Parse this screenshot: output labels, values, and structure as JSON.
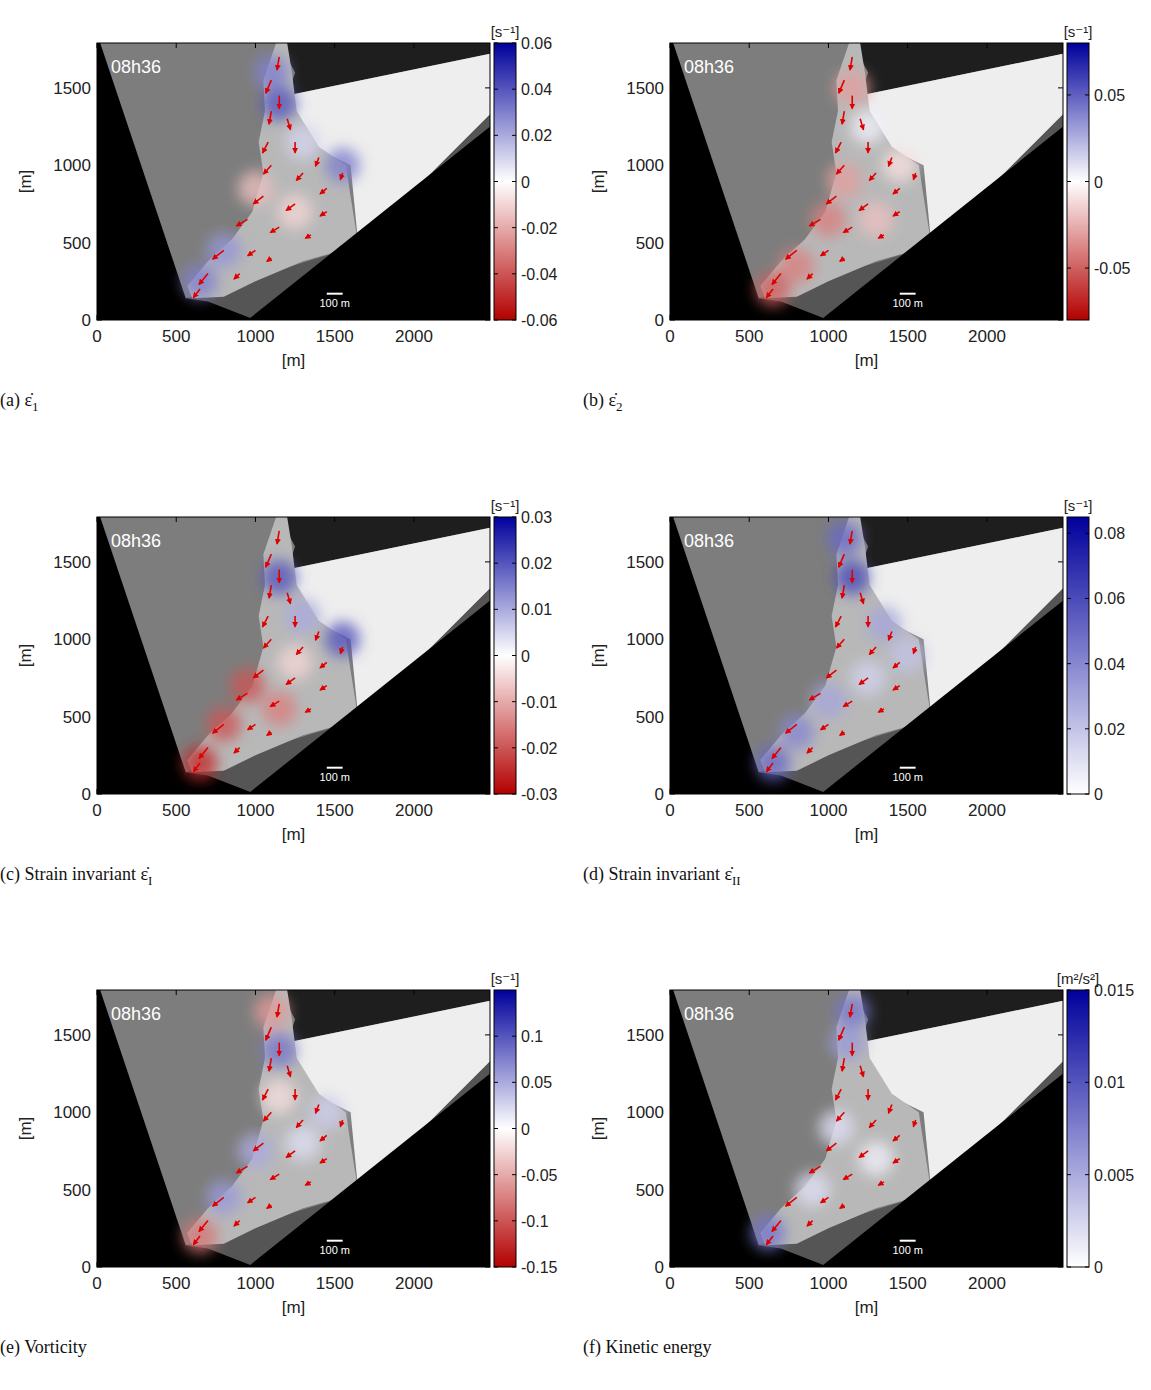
{
  "chart_data": [
    {
      "type": "vector_field_map",
      "caption": "(a) ε̇",
      "caption_sub": "1",
      "annotation": "08h36",
      "x_label": "[m]",
      "y_label": "[m]",
      "xlim": [
        0,
        2480
      ],
      "ylim": [
        0,
        1790
      ],
      "xticks": [
        0,
        500,
        1000,
        1500,
        2000
      ],
      "yticks": [
        0,
        500,
        1000,
        1500
      ],
      "scale_bar": {
        "length": 100,
        "label": "100 m"
      },
      "colorbar": {
        "range": [
          -0.06,
          0.06
        ],
        "ticks": [
          -0.06,
          -0.04,
          -0.02,
          0,
          0.02,
          0.04,
          0.06
        ],
        "unit": "[s⁻¹]",
        "colors": [
          "#b30000",
          "#ffffff",
          "#00009c"
        ]
      },
      "field": {
        "x": [
          1150,
          1100,
          1550,
          800,
          1250,
          1000,
          650,
          1300
        ],
        "y": [
          1400,
          1600,
          1000,
          450,
          700,
          850,
          250,
          1150
        ],
        "values": [
          0.04,
          0.03,
          0.03,
          0.025,
          -0.01,
          -0.015,
          0.03,
          0.01
        ]
      }
    },
    {
      "type": "vector_field_map",
      "caption": "(b) ε̇",
      "caption_sub": "2",
      "annotation": "08h36",
      "x_label": "[m]",
      "y_label": "[m]",
      "xlim": [
        0,
        2480
      ],
      "ylim": [
        0,
        1790
      ],
      "xticks": [
        0,
        500,
        1000,
        1500,
        2000
      ],
      "yticks": [
        0,
        500,
        1000,
        1500
      ],
      "scale_bar": {
        "length": 100,
        "label": "100 m"
      },
      "colorbar": {
        "range": [
          -0.08,
          0.08
        ],
        "ticks": [
          -0.05,
          0,
          0.05
        ],
        "unit": "[s⁻¹]",
        "colors": [
          "#b30000",
          "#ffffff",
          "#00009c"
        ]
      },
      "field": {
        "x": [
          1000,
          1100,
          800,
          1150,
          1300,
          650,
          1450,
          1250
        ],
        "y": [
          650,
          900,
          350,
          1500,
          650,
          200,
          1000,
          1250
        ],
        "values": [
          -0.04,
          -0.03,
          -0.04,
          -0.03,
          -0.02,
          -0.05,
          -0.01,
          0.005
        ]
      }
    },
    {
      "type": "vector_field_map",
      "caption": "(c) Strain invariant ε̇",
      "caption_sub": "I",
      "annotation": "08h36",
      "x_label": "[m]",
      "y_label": "[m]",
      "xlim": [
        0,
        2480
      ],
      "ylim": [
        0,
        1790
      ],
      "xticks": [
        0,
        500,
        1000,
        1500,
        2000
      ],
      "yticks": [
        0,
        500,
        1000,
        1500
      ],
      "scale_bar": {
        "length": 100,
        "label": "100 m"
      },
      "colorbar": {
        "range": [
          -0.03,
          0.03
        ],
        "ticks": [
          -0.03,
          -0.02,
          -0.01,
          0,
          0.01,
          0.02,
          0.03
        ],
        "unit": "[s⁻¹]",
        "colors": [
          "#b30000",
          "#ffffff",
          "#00009c"
        ]
      },
      "field": {
        "x": [
          1150,
          1550,
          950,
          800,
          1150,
          650,
          1300,
          1250
        ],
        "y": [
          1400,
          1000,
          700,
          450,
          550,
          200,
          1150,
          850
        ],
        "values": [
          0.02,
          0.02,
          -0.02,
          -0.02,
          -0.015,
          -0.025,
          0.01,
          -0.005
        ]
      }
    },
    {
      "type": "vector_field_map",
      "caption": "(d) Strain invariant ε̇",
      "caption_sub": "II",
      "annotation": "08h36",
      "x_label": "[m]",
      "y_label": "[m]",
      "xlim": [
        0,
        2480
      ],
      "ylim": [
        0,
        1790
      ],
      "xticks": [
        0,
        500,
        1000,
        1500,
        2000
      ],
      "yticks": [
        0,
        500,
        1000,
        1500
      ],
      "scale_bar": {
        "length": 100,
        "label": "100 m"
      },
      "colorbar": {
        "range": [
          0,
          0.085
        ],
        "ticks": [
          0,
          0.02,
          0.04,
          0.06,
          0.08
        ],
        "unit": "[s⁻¹]",
        "colors": [
          "#ffffff",
          "#00009c"
        ]
      },
      "field": {
        "x": [
          1150,
          1100,
          1000,
          800,
          650,
          1350,
          1250,
          1500
        ],
        "y": [
          1400,
          1650,
          600,
          400,
          200,
          1100,
          750,
          900
        ],
        "values": [
          0.06,
          0.05,
          0.03,
          0.04,
          0.05,
          0.03,
          0.015,
          0.02
        ]
      }
    },
    {
      "type": "vector_field_map",
      "caption": "(e) Vorticity",
      "annotation": "08h36",
      "x_label": "[m]",
      "y_label": "[m]",
      "xlim": [
        0,
        2480
      ],
      "ylim": [
        0,
        1790
      ],
      "xticks": [
        0,
        500,
        1000,
        1500,
        2000
      ],
      "yticks": [
        0,
        500,
        1000,
        1500
      ],
      "scale_bar": {
        "length": 100,
        "label": "100 m"
      },
      "colorbar": {
        "range": [
          -0.15,
          0.15
        ],
        "ticks": [
          -0.15,
          -0.1,
          -0.05,
          0,
          0.05,
          0.1
        ],
        "unit": "[s⁻¹]",
        "colors": [
          "#b30000",
          "#ffffff",
          "#00009c"
        ]
      },
      "field": {
        "x": [
          1150,
          1100,
          1000,
          800,
          650,
          1300,
          1450,
          1150
        ],
        "y": [
          1400,
          1650,
          750,
          450,
          200,
          800,
          1000,
          1100
        ],
        "values": [
          0.08,
          -0.06,
          0.05,
          0.06,
          -0.08,
          0.02,
          0.03,
          -0.02
        ]
      }
    },
    {
      "type": "vector_field_map",
      "caption": "(f) Kinetic energy",
      "annotation": "08h36",
      "x_label": "[m]",
      "y_label": "[m]",
      "xlim": [
        0,
        2480
      ],
      "ylim": [
        0,
        1790
      ],
      "xticks": [
        0,
        500,
        1000,
        1500,
        2000
      ],
      "yticks": [
        0,
        500,
        1000,
        1500
      ],
      "scale_bar": {
        "length": 100,
        "label": "100 m"
      },
      "colorbar": {
        "range": [
          0,
          0.015
        ],
        "ticks": [
          0,
          0.005,
          0.01,
          0.015
        ],
        "unit": "[m²/s²]",
        "colors": [
          "#ffffff",
          "#00009c"
        ]
      },
      "field": {
        "x": [
          1150,
          1120,
          620,
          1050,
          900,
          1300
        ],
        "y": [
          1650,
          1450,
          220,
          900,
          500,
          700
        ],
        "values": [
          0.008,
          0.006,
          0.008,
          0.002,
          0.002,
          0.001
        ]
      }
    }
  ],
  "vector_field": {
    "x": [
      1150,
      1100,
      1150,
      1100,
      1200,
      1080,
      1250,
      1400,
      1550,
      1100,
      1300,
      1450,
      1050,
      1250,
      1450,
      950,
      1150,
      1350,
      800,
      1000,
      700,
      900,
      650,
      1100
    ],
    "y": [
      1700,
      1550,
      1450,
      1350,
      1300,
      1150,
      1150,
      1050,
      950,
      1000,
      950,
      850,
      800,
      750,
      700,
      650,
      600,
      550,
      450,
      450,
      300,
      300,
      200,
      400
    ],
    "u": [
      -0.02,
      -0.05,
      0.0,
      -0.02,
      0.03,
      -0.05,
      0.0,
      -0.03,
      -0.02,
      -0.07,
      -0.06,
      -0.06,
      -0.09,
      -0.08,
      -0.06,
      -0.1,
      -0.08,
      -0.05,
      -0.1,
      -0.07,
      -0.08,
      -0.05,
      -0.06,
      -0.04
    ],
    "v": [
      -0.12,
      -0.12,
      -0.12,
      -0.12,
      -0.1,
      -0.1,
      -0.1,
      -0.08,
      -0.06,
      -0.08,
      -0.07,
      -0.05,
      -0.07,
      -0.06,
      -0.04,
      -0.06,
      -0.05,
      -0.03,
      -0.08,
      -0.05,
      -0.1,
      -0.05,
      -0.08,
      -0.03
    ]
  }
}
